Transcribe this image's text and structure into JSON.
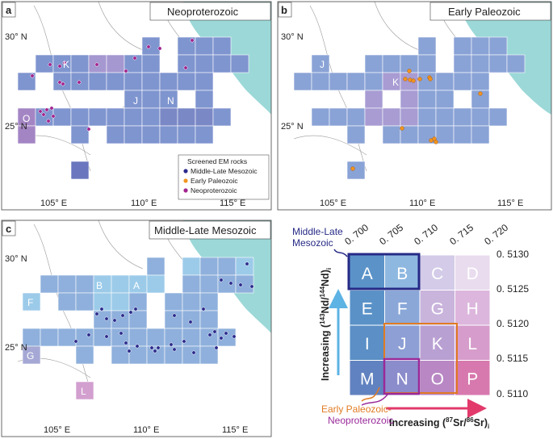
{
  "panels": [
    {
      "letter": "a",
      "title": "Neoproterozoic",
      "lat_labels": [
        "30° N",
        "25° N"
      ],
      "lon_labels": [
        "105° E",
        "110° E",
        "115° E"
      ],
      "grid_labels": [
        "K",
        "J",
        "N",
        "O"
      ]
    },
    {
      "letter": "b",
      "title": "Early Paleozoic",
      "lat_labels": [
        "30° N",
        "25° N"
      ],
      "lon_labels": [
        "105° E",
        "110° E",
        "115° E"
      ],
      "grid_labels": [
        "J",
        "K"
      ]
    },
    {
      "letter": "c",
      "title": "Middle-Late Mesozoic",
      "lat_labels": [
        "30° N",
        "25° N"
      ],
      "lon_labels": [
        "105° E",
        "110° E",
        "115° E"
      ],
      "grid_labels": [
        "B",
        "A",
        "F",
        "G",
        "L"
      ]
    }
  ],
  "legend": {
    "title": "Screened EM rocks",
    "items": [
      {
        "label": "Middle-Late Mesozoic",
        "color": "#2b2a8c"
      },
      {
        "label": "Early Paleozoic",
        "color": "#f0941f"
      },
      {
        "label": "Neoproterozoic",
        "color": "#a2248f"
      }
    ]
  },
  "matrix": {
    "sr_ticks": [
      "0. 700",
      "0. 705",
      "0. 710",
      "0. 715",
      "0. 720"
    ],
    "nd_ticks": [
      "0. 5130",
      "0. 5125",
      "0. 5120",
      "0. 5115",
      "0. 5110"
    ],
    "cells": [
      {
        "label": "A",
        "color": "#5b93c9"
      },
      {
        "label": "B",
        "color": "#8eb8e0"
      },
      {
        "label": "C",
        "color": "#d3cbe8"
      },
      {
        "label": "D",
        "color": "#e9dcef"
      },
      {
        "label": "E",
        "color": "#5a92c8"
      },
      {
        "label": "F",
        "color": "#8aa7d8"
      },
      {
        "label": "G",
        "color": "#c9b4dc"
      },
      {
        "label": "H",
        "color": "#dcb6dc"
      },
      {
        "label": "I",
        "color": "#5b8fc6"
      },
      {
        "label": "J",
        "color": "#8d9fd4"
      },
      {
        "label": "K",
        "color": "#b9a0d3"
      },
      {
        "label": "L",
        "color": "#d69ccb"
      },
      {
        "label": "M",
        "color": "#6182c0"
      },
      {
        "label": "N",
        "color": "#8b8ccb"
      },
      {
        "label": "O",
        "color": "#b887c4"
      },
      {
        "label": "P",
        "color": "#d779ae"
      }
    ],
    "ylabel_prefix": "Increasing (",
    "ylabel_sup1": "143",
    "ylabel_mid": "Nd/",
    "ylabel_sup2": "144",
    "ylabel_end": "Nd)",
    "ylabel_sub": "i",
    "xlabel_prefix": "Increasing (",
    "xlabel_sup1": "87",
    "xlabel_mid": "Sr/",
    "xlabel_sup2": "86",
    "xlabel_end": "Sr)",
    "xlabel_sub": "i",
    "callout_mesozoic_line1": "Middle-Late",
    "callout_mesozoic_line2": "Mesozoic",
    "callout_paleozoic_line1": "Early Paleozoic-",
    "callout_paleozoic_line2": "Neoproterozoic",
    "colors": {
      "mesozoic_outline": "#262a86",
      "paleozoic_outline": "#e07b22",
      "neoproterozoic_outline": "#9a2a9a",
      "arrow_up": "#5db3e4",
      "arrow_right": "#e23a6b"
    }
  }
}
